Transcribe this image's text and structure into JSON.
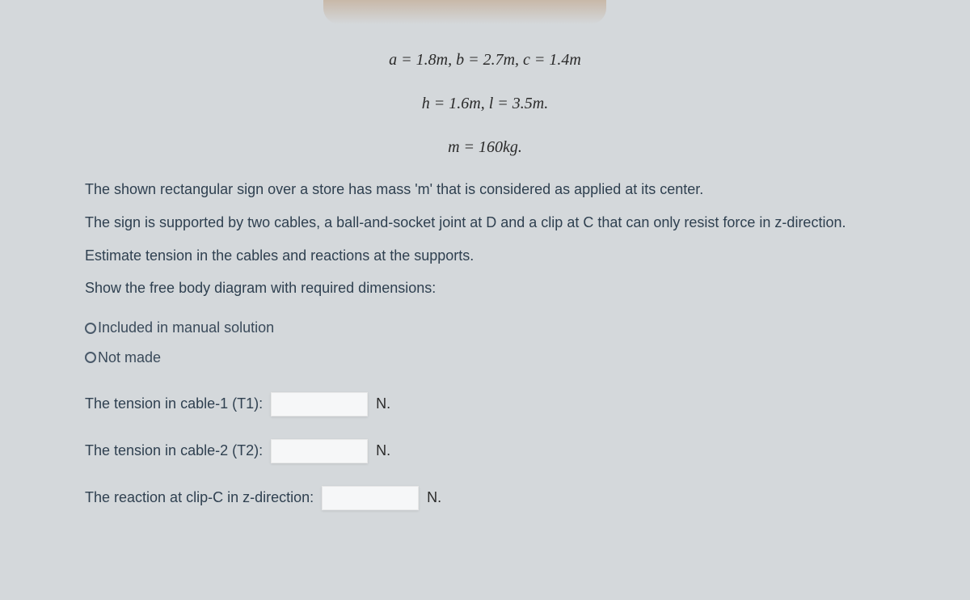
{
  "equations": {
    "line1": "a = 1.8m, b = 2.7m, c = 1.4m",
    "line2": "h = 1.6m, l = 3.5m.",
    "line3": "m = 160kg."
  },
  "problem": {
    "p1": "The shown rectangular sign over a store has mass 'm' that is considered as applied at its center.",
    "p2": "The sign is supported by two cables, a ball-and-socket joint at D and a clip at C that can only resist force in z-direction.",
    "p3": "Estimate tension in the cables and reactions at the supports.",
    "p4": "Show the free body diagram with required dimensions:"
  },
  "radios": {
    "opt1": "Included in manual solution",
    "opt2": "Not made"
  },
  "answers": {
    "t1": {
      "label": "The tension in cable-1 (T1):",
      "unit": "N."
    },
    "t2": {
      "label": "The tension in cable-2 (T2):",
      "unit": "N."
    },
    "cz": {
      "label": "The reaction at clip-C in z-direction:",
      "unit": "N."
    }
  },
  "colors": {
    "background": "#d4d8db",
    "text": "#2f4050",
    "input_bg": "#f6f7f8"
  }
}
